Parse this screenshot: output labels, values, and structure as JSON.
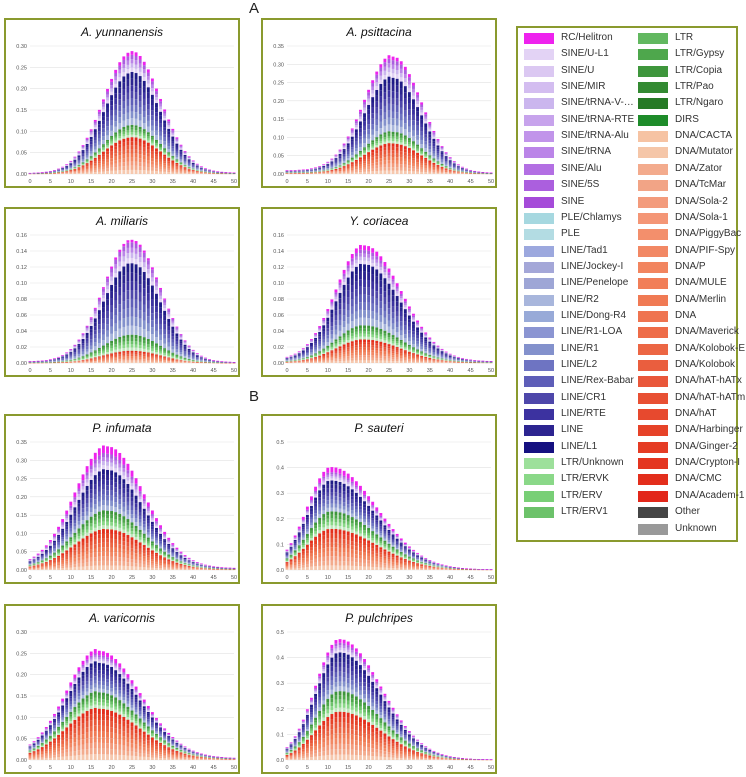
{
  "sections": {
    "a": "A",
    "b": "B"
  },
  "chart_data": [
    {
      "type": "bar",
      "stacked": true,
      "title": "A. yunnanensis",
      "xlim": [
        0,
        50
      ],
      "ylim": [
        0,
        0.3
      ],
      "xticks": [
        0,
        5,
        10,
        15,
        20,
        25,
        30,
        35,
        40,
        45,
        50
      ],
      "yticks": [
        "0.00",
        "0.05",
        "0.10",
        "0.15",
        "0.20",
        "0.25",
        "0.30"
      ],
      "peak_x": 25,
      "spread": [
        7,
        7
      ],
      "totals_peak": 0.285,
      "bottom": [
        0.002,
        0.003
      ],
      "fractions": {
        "dna": 0.3,
        "ltr": 0.1,
        "line": 0.43,
        "sine": 0.14
      }
    },
    {
      "type": "bar",
      "stacked": true,
      "title": "A. psittacina",
      "xlim": [
        0,
        50
      ],
      "ylim": [
        0,
        0.35
      ],
      "xticks": [
        0,
        5,
        10,
        15,
        20,
        25,
        30,
        35,
        40,
        45,
        50
      ],
      "yticks": [
        "0.00",
        "0.05",
        "0.10",
        "0.15",
        "0.20",
        "0.25",
        "0.30",
        "0.35"
      ],
      "peak_x": 26,
      "spread": [
        7,
        7
      ],
      "totals_peak": 0.318,
      "bottom": [
        0.01,
        0.003
      ],
      "fractions": {
        "dna": 0.26,
        "ltr": 0.1,
        "line": 0.46,
        "sine": 0.15
      }
    },
    {
      "type": "bar",
      "stacked": true,
      "title": "A. miliaris",
      "xlim": [
        0,
        50
      ],
      "ylim": [
        0,
        0.16
      ],
      "xticks": [
        0,
        5,
        10,
        15,
        20,
        25,
        30,
        35,
        40,
        45,
        50
      ],
      "yticks": [
        "0.00",
        "0.02",
        "0.04",
        "0.06",
        "0.08",
        "0.10",
        "0.12",
        "0.14",
        "0.16"
      ],
      "peak_x": 25,
      "spread": [
        7,
        7
      ],
      "totals_peak": 0.153,
      "bottom": [
        0.002,
        0.001
      ],
      "fractions": {
        "dna": 0.1,
        "ltr": 0.13,
        "line": 0.58,
        "sine": 0.17
      }
    },
    {
      "type": "bar",
      "stacked": true,
      "title": "Y. coriacea",
      "xlim": [
        0,
        50
      ],
      "ylim": [
        0,
        0.16
      ],
      "xticks": [
        0,
        5,
        10,
        15,
        20,
        25,
        30,
        35,
        40,
        45,
        50
      ],
      "yticks": [
        "0.00",
        "0.02",
        "0.04",
        "0.06",
        "0.08",
        "0.10",
        "0.12",
        "0.14",
        "0.16"
      ],
      "peak_x": 19,
      "spread": [
        7,
        9
      ],
      "totals_peak": 0.145,
      "bottom": [
        0.004,
        0.002
      ],
      "fractions": {
        "dna": 0.2,
        "ltr": 0.12,
        "line": 0.52,
        "sine": 0.12
      }
    },
    {
      "type": "bar",
      "stacked": true,
      "title": "P. infumata",
      "xlim": [
        0,
        50
      ],
      "ylim": [
        0,
        0.35
      ],
      "xticks": [
        0,
        5,
        10,
        15,
        20,
        25,
        30,
        35,
        40,
        45,
        50
      ],
      "yticks": [
        "0.00",
        "0.05",
        "0.10",
        "0.15",
        "0.20",
        "0.25",
        "0.30",
        "0.35"
      ],
      "peak_x": 19,
      "spread": [
        8,
        9
      ],
      "totals_peak": 0.333,
      "bottom": [
        0.01,
        0.005
      ],
      "fractions": {
        "dna": 0.33,
        "ltr": 0.15,
        "line": 0.33,
        "sine": 0.13
      }
    },
    {
      "type": "bar",
      "stacked": true,
      "title": "P. sauteri",
      "xlim": [
        0,
        50
      ],
      "ylim": [
        0,
        0.5
      ],
      "xticks": [
        0,
        5,
        10,
        15,
        20,
        25,
        30,
        35,
        40,
        45,
        50
      ],
      "yticks": [
        "0.0",
        "0.1",
        "0.2",
        "0.3",
        "0.4",
        "0.5"
      ],
      "peak_x": 11,
      "spread": [
        6,
        11
      ],
      "totals_peak": 0.4,
      "bottom": [
        0.005,
        0.002
      ],
      "fractions": {
        "dna": 0.4,
        "ltr": 0.17,
        "line": 0.3,
        "sine": 0.08
      }
    },
    {
      "type": "bar",
      "stacked": true,
      "title": "A. varicornis",
      "xlim": [
        0,
        50
      ],
      "ylim": [
        0,
        0.3
      ],
      "xticks": [
        0,
        5,
        10,
        15,
        20,
        25,
        30,
        35,
        40,
        45,
        50
      ],
      "yticks": [
        "0.00",
        "0.05",
        "0.10",
        "0.15",
        "0.20",
        "0.25",
        "0.30"
      ],
      "peak_x": 17,
      "spread": [
        8,
        10
      ],
      "totals_peak": 0.252,
      "bottom": [
        0.01,
        0.004
      ],
      "fractions": {
        "dna": 0.47,
        "ltr": 0.15,
        "line": 0.27,
        "sine": 0.07
      }
    },
    {
      "type": "bar",
      "stacked": true,
      "title": "P. pulchripes",
      "xlim": [
        0,
        50
      ],
      "ylim": [
        0,
        0.5
      ],
      "xticks": [
        0,
        5,
        10,
        15,
        20,
        25,
        30,
        35,
        40,
        45,
        50
      ],
      "yticks": [
        "0.0",
        "0.1",
        "0.2",
        "0.3",
        "0.4",
        "0.5"
      ],
      "peak_x": 13,
      "spread": [
        6,
        10
      ],
      "totals_peak": 0.47,
      "bottom": [
        0.005,
        0.002
      ],
      "fractions": {
        "dna": 0.4,
        "ltr": 0.17,
        "line": 0.32,
        "sine": 0.08
      }
    }
  ],
  "legend": {
    "left": [
      {
        "label": "RC/Helitron",
        "color": "#ee22ee"
      },
      {
        "label": "SINE/U-L1",
        "color": "#e3d3f5"
      },
      {
        "label": "SINE/U",
        "color": "#dbc8f2"
      },
      {
        "label": "SINE/MIR",
        "color": "#d3bdf0"
      },
      {
        "label": "SINE/tRNA-V-R...",
        "color": "#cbb6ee"
      },
      {
        "label": "SINE/tRNA-RTE",
        "color": "#c7a3ec"
      },
      {
        "label": "SINE/tRNA-Alu",
        "color": "#c194ea"
      },
      {
        "label": "SINE/tRNA",
        "color": "#bb85e8"
      },
      {
        "label": "SINE/Alu",
        "color": "#b36fe3"
      },
      {
        "label": "SINE/5S",
        "color": "#ab5fde"
      },
      {
        "label": "SINE",
        "color": "#a54bd9"
      },
      {
        "label": "PLE/Chlamys",
        "color": "#a6d8e0"
      },
      {
        "label": "PLE",
        "color": "#b3dce3"
      },
      {
        "label": "LINE/Tad1",
        "color": "#9ca8de"
      },
      {
        "label": "LINE/Jockey-I",
        "color": "#a4a7d8"
      },
      {
        "label": "LINE/Penelope",
        "color": "#9ea6d6"
      },
      {
        "label": "LINE/R2",
        "color": "#a8b6dc"
      },
      {
        "label": "LINE/Dong-R4",
        "color": "#98aad8"
      },
      {
        "label": "LINE/R1-LOA",
        "color": "#8b95d2"
      },
      {
        "label": "LINE/R1",
        "color": "#8391cc"
      },
      {
        "label": "LINE/L2",
        "color": "#6e74c2"
      },
      {
        "label": "LINE/Rex-Babar",
        "color": "#5e5eb8"
      },
      {
        "label": "LINE/CR1",
        "color": "#4e47aa"
      },
      {
        "label": "LINE/RTE",
        "color": "#3c32a0"
      },
      {
        "label": "LINE",
        "color": "#2c2490"
      },
      {
        "label": "LINE/L1",
        "color": "#151080"
      },
      {
        "label": "LTR/Unknown",
        "color": "#9de09b"
      },
      {
        "label": "LTR/ERVK",
        "color": "#8ad888"
      },
      {
        "label": "LTR/ERV",
        "color": "#78cf76"
      },
      {
        "label": "LTR/ERV1",
        "color": "#6cc26a"
      }
    ],
    "right": [
      {
        "label": "LTR",
        "color": "#62b860"
      },
      {
        "label": "LTR/Gypsy",
        "color": "#4ea74c"
      },
      {
        "label": "LTR/Copia",
        "color": "#3e963c"
      },
      {
        "label": "LTR/Pao",
        "color": "#338a32"
      },
      {
        "label": "LTR/Ngaro",
        "color": "#267a25"
      },
      {
        "label": "DIRS",
        "color": "#1e8c2a"
      },
      {
        "label": "DNA/CACTA",
        "color": "#f6c3a3"
      },
      {
        "label": "DNA/Mutator",
        "color": "#f5c6a8"
      },
      {
        "label": "DNA/Zator",
        "color": "#f3ab8d"
      },
      {
        "label": "DNA/TcMar",
        "color": "#f2a486"
      },
      {
        "label": "DNA/Sola-2",
        "color": "#f39b7c"
      },
      {
        "label": "DNA/Sola-1",
        "color": "#f49676"
      },
      {
        "label": "DNA/PiggyBac",
        "color": "#f38f6c"
      },
      {
        "label": "DNA/PIF-Spy",
        "color": "#f28864"
      },
      {
        "label": "DNA/P",
        "color": "#f2855f"
      },
      {
        "label": "DNA/MULE",
        "color": "#f17e58"
      },
      {
        "label": "DNA/Merlin",
        "color": "#f07a54"
      },
      {
        "label": "DNA",
        "color": "#ef7450"
      },
      {
        "label": "DNA/Maverick",
        "color": "#ee6c48"
      },
      {
        "label": "DNA/Kolobok-E",
        "color": "#ec6644"
      },
      {
        "label": "DNA/Kolobok",
        "color": "#ea5e3e"
      },
      {
        "label": "DNA/hAT-hATx",
        "color": "#e9573a"
      },
      {
        "label": "DNA/hAT-hATm",
        "color": "#e85033"
      },
      {
        "label": "DNA/hAT",
        "color": "#e7492e"
      },
      {
        "label": "DNA/Harbinger",
        "color": "#e64228"
      },
      {
        "label": "DNA/Ginger-2",
        "color": "#e53c24"
      },
      {
        "label": "DNA/Crypton-I",
        "color": "#e43520"
      },
      {
        "label": "DNA/CMC",
        "color": "#e32e1c"
      },
      {
        "label": "DNA/Academ-1",
        "color": "#e2271a"
      },
      {
        "label": "Other",
        "color": "#454545"
      },
      {
        "label": "Unknown",
        "color": "#999999"
      }
    ]
  }
}
